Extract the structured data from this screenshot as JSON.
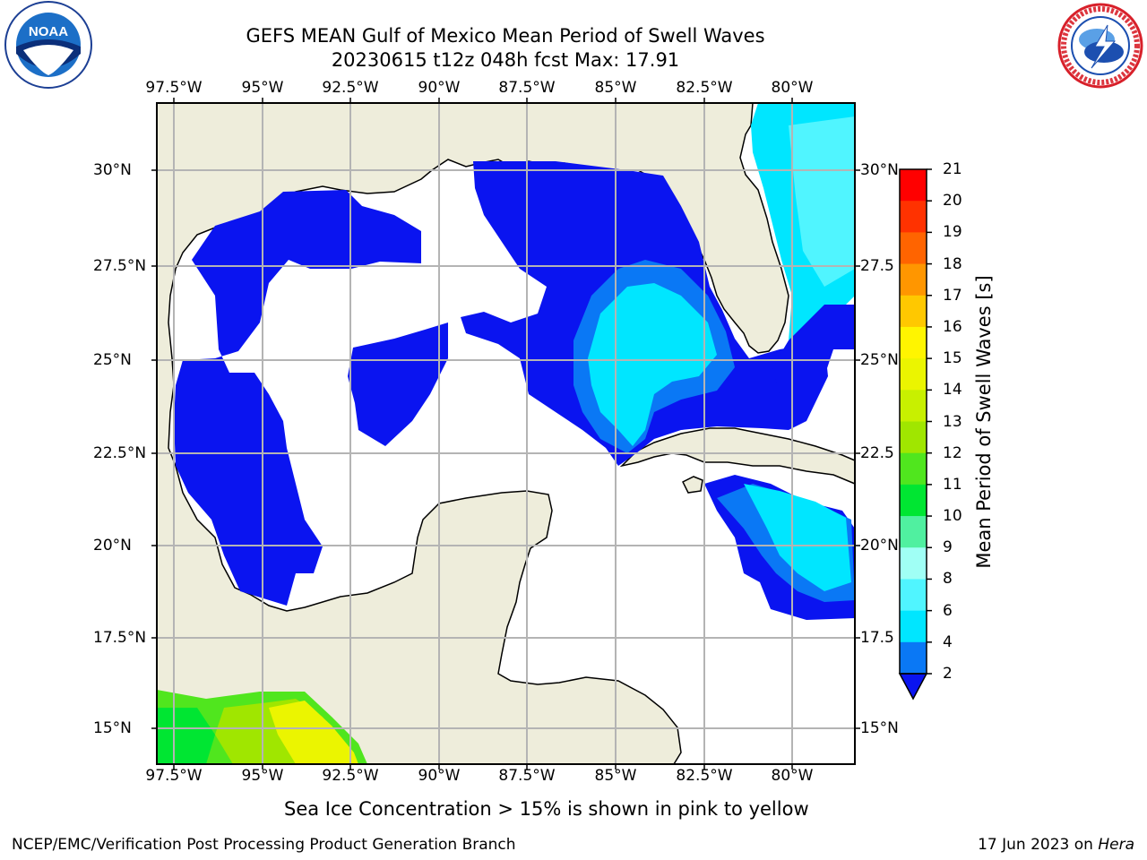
{
  "title": {
    "line1": "GEFS MEAN Gulf of Mexico Mean Period of Swell Waves",
    "line2": "20230615 t12z 048h fcst   Max: 17.91"
  },
  "logos": {
    "left": {
      "name": "noaa-logo",
      "text": "NOAA"
    },
    "right": {
      "name": "nws-logo",
      "text": "NATIONAL WEATHER SERVICE"
    }
  },
  "map": {
    "lon_ticks": [
      "97.5°W",
      "95°W",
      "92.5°W",
      "90°W",
      "87.5°W",
      "85°W",
      "82.5°W",
      "80°W"
    ],
    "lat_ticks_left": [
      "30°N",
      "27.5°N",
      "25°N",
      "22.5°N",
      "20°N",
      "17.5°N",
      "15°N"
    ],
    "lat_ticks_right": [
      "30°N",
      "27.5",
      "25°N",
      "22.5",
      "20°N",
      "17.5",
      "15°N"
    ],
    "colors": {
      "land": "#eeeddb",
      "ocean": "#ffffff",
      "grid": "#b4b4b4",
      "coast": "#000000"
    }
  },
  "colorbar": {
    "label": "Mean Period of Swell Waves [s]",
    "ticks": [
      "2",
      "4",
      "6",
      "8",
      "9",
      "10",
      "11",
      "12",
      "13",
      "14",
      "15",
      "16",
      "17",
      "18",
      "19",
      "20",
      "21"
    ],
    "colors": [
      "#0a14f0",
      "#0a78f5",
      "#00e6ff",
      "#50f5ff",
      "#a0fff5",
      "#50f0a0",
      "#00e632",
      "#50e61e",
      "#a0e600",
      "#c8f000",
      "#ebf500",
      "#fff500",
      "#ffc800",
      "#ff9600",
      "#ff6400",
      "#ff3200",
      "#ff0000"
    ]
  },
  "note": "Sea Ice Concentration > 15% is shown in pink to yellow",
  "footer": {
    "left": "NCEP/EMC/Verification Post Processing Product Generation Branch",
    "right_prefix": "17 Jun 2023 on ",
    "right_host": "Hera"
  }
}
